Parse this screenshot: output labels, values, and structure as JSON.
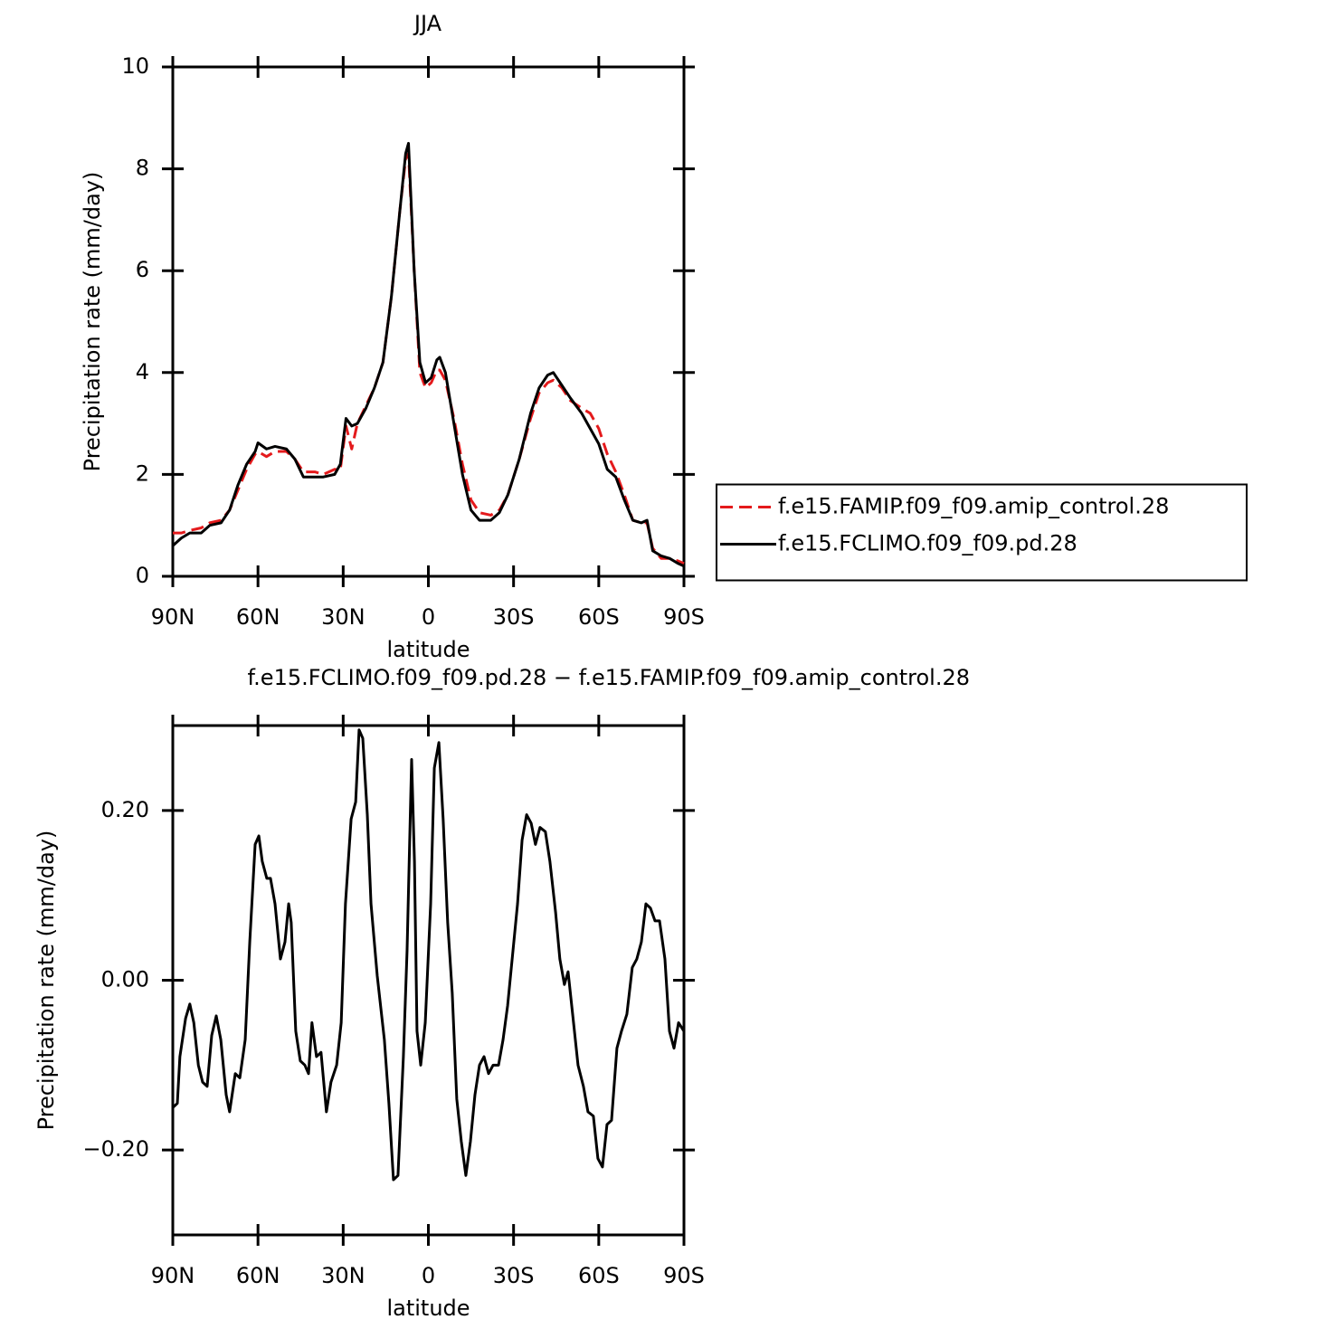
{
  "chart_data": [
    {
      "type": "line",
      "title": "JJA",
      "xlabel": "latitude",
      "ylabel": "Precipitation rate (mm/day)",
      "x": [
        90,
        87,
        84,
        80,
        77,
        73,
        70,
        67,
        64,
        61,
        60,
        57,
        54,
        50,
        47,
        44,
        40,
        37,
        33,
        31,
        29,
        27,
        25,
        22,
        19,
        16,
        13,
        10,
        8,
        7,
        5,
        3,
        1,
        -1,
        -3,
        -4,
        -6,
        -9,
        -12,
        -15,
        -18,
        -22,
        -25,
        -28,
        -32,
        -36,
        -39,
        -42,
        -44,
        -47,
        -50,
        -54,
        -57,
        -60,
        -63,
        -66,
        -69,
        -72,
        -75,
        -77,
        -79,
        -82,
        -85,
        -88,
        -90
      ],
      "series": [
        {
          "name": "f.e15.FAMIP.f09_f09.amip_control.28",
          "color": "#e41a1c",
          "dash": "dashed",
          "values": [
            0.85,
            0.85,
            0.9,
            0.95,
            1.05,
            1.1,
            1.3,
            1.7,
            2.1,
            2.4,
            2.45,
            2.35,
            2.45,
            2.45,
            2.3,
            2.05,
            2.05,
            2.0,
            2.1,
            2.1,
            2.95,
            2.5,
            3.0,
            3.35,
            3.7,
            4.2,
            5.5,
            7.2,
            8.2,
            8.3,
            6.0,
            4.0,
            3.7,
            3.8,
            4.05,
            4.05,
            3.85,
            3.1,
            2.2,
            1.5,
            1.25,
            1.2,
            1.3,
            1.6,
            2.3,
            3.1,
            3.6,
            3.8,
            3.85,
            3.7,
            3.45,
            3.3,
            3.2,
            2.9,
            2.4,
            2.05,
            1.6,
            1.1,
            1.05,
            1.05,
            0.55,
            0.35,
            0.35,
            0.3,
            0.25
          ]
        },
        {
          "name": "f.e15.FCLIMO.f09_f09.pd.28",
          "color": "#000000",
          "dash": "solid",
          "values": [
            0.6,
            0.75,
            0.85,
            0.85,
            1.0,
            1.05,
            1.3,
            1.8,
            2.2,
            2.45,
            2.62,
            2.5,
            2.55,
            2.5,
            2.3,
            1.95,
            1.95,
            1.95,
            2.0,
            2.2,
            3.1,
            2.95,
            3.0,
            3.3,
            3.7,
            4.2,
            5.5,
            7.2,
            8.3,
            8.5,
            6.0,
            4.2,
            3.8,
            3.9,
            4.25,
            4.3,
            4.0,
            3.0,
            2.0,
            1.3,
            1.1,
            1.1,
            1.25,
            1.6,
            2.3,
            3.2,
            3.7,
            3.95,
            4.0,
            3.75,
            3.5,
            3.2,
            2.9,
            2.6,
            2.1,
            1.95,
            1.5,
            1.1,
            1.05,
            1.1,
            0.5,
            0.4,
            0.35,
            0.25,
            0.2
          ]
        }
      ],
      "xlim": [
        90,
        -90
      ],
      "xticks": [
        {
          "value": 90,
          "label": "90N"
        },
        {
          "value": 60,
          "label": "60N"
        },
        {
          "value": 30,
          "label": "30N"
        },
        0,
        {
          "value": -30,
          "label": "30S"
        },
        {
          "value": -60,
          "label": "60S"
        },
        {
          "value": -90,
          "label": "90S"
        }
      ],
      "ylim": [
        0,
        10
      ],
      "yticks": [
        0,
        2,
        4,
        6,
        8,
        10
      ],
      "legend": "right"
    },
    {
      "type": "line",
      "title": "f.e15.FCLIMO.f09_f09.pd.28 − f.e15.FAMIP.f09_f09.amip_control.28",
      "xlabel": "latitude",
      "ylabel": "Precipitation rate (mm/day)",
      "x": [
        90,
        88.4,
        87.5,
        85.5,
        84,
        82.6,
        81,
        79.5,
        77.9,
        76.3,
        74.7,
        73.1,
        71.2,
        70,
        68,
        66.4,
        64.5,
        62.9,
        61,
        59.7,
        58.5,
        56.9,
        55.6,
        54,
        52.1,
        50.5,
        49.2,
        48.3,
        46.7,
        45.1,
        43.5,
        42.2,
        41,
        39.4,
        37.8,
        35.9,
        34.3,
        32.3,
        30.7,
        29.2,
        27.2,
        25.6,
        24.4,
        23.1,
        21.5,
        20.2,
        18,
        15.5,
        13.9,
        12.3,
        10.7,
        8.8,
        7.5,
        5.9,
        4.9,
        4,
        2.7,
        1.1,
        -0.8,
        -2.1,
        -3.7,
        -5.2,
        -6.8,
        -8.4,
        -10,
        -11.6,
        -13.2,
        -14.8,
        -16.4,
        -18,
        -19.6,
        -21.2,
        -22.8,
        -24.7,
        -26.3,
        -27.9,
        -29.8,
        -31.4,
        -33,
        -34.6,
        -36.2,
        -37.7,
        -39.3,
        -41.2,
        -42.8,
        -44.8,
        -46.3,
        -47.9,
        -49.2,
        -50.8,
        -52.7,
        -54.6,
        -56.2,
        -58.1,
        -59.7,
        -61.3,
        -62.9,
        -64.5,
        -66.4,
        -68,
        -69.9,
        -71.8,
        -73.4,
        -75,
        -76.6,
        -78.2,
        -79.8,
        -81.4,
        -83.3,
        -84.9,
        -86.5,
        -88.1,
        -90
      ],
      "values": [
        -0.15,
        -0.145,
        -0.09,
        -0.045,
        -0.028,
        -0.05,
        -0.1,
        -0.12,
        -0.125,
        -0.065,
        -0.042,
        -0.07,
        -0.135,
        -0.155,
        -0.11,
        -0.115,
        -0.07,
        0.045,
        0.16,
        0.17,
        0.14,
        0.12,
        0.12,
        0.09,
        0.025,
        0.045,
        0.09,
        0.068,
        -0.06,
        -0.095,
        -0.1,
        -0.11,
        -0.05,
        -0.09,
        -0.085,
        -0.155,
        -0.12,
        -0.1,
        -0.05,
        0.09,
        0.19,
        0.21,
        0.295,
        0.285,
        0.195,
        0.09,
        0.005,
        -0.07,
        -0.145,
        -0.235,
        -0.23,
        -0.09,
        0.035,
        0.26,
        0.14,
        -0.06,
        -0.1,
        -0.05,
        0.09,
        0.25,
        0.28,
        0.19,
        0.068,
        -0.015,
        -0.14,
        -0.19,
        -0.23,
        -0.19,
        -0.135,
        -0.1,
        -0.09,
        -0.11,
        -0.1,
        -0.1,
        -0.07,
        -0.03,
        0.035,
        0.09,
        0.165,
        0.195,
        0.185,
        0.16,
        0.18,
        0.175,
        0.14,
        0.08,
        0.025,
        -0.005,
        0.01,
        -0.04,
        -0.1,
        -0.125,
        -0.155,
        -0.16,
        -0.21,
        -0.22,
        -0.17,
        -0.165,
        -0.08,
        -0.06,
        -0.04,
        0.015,
        0.025,
        0.045,
        0.09,
        0.085,
        0.07,
        0.07,
        0.025,
        -0.06,
        -0.08,
        -0.05,
        -0.06
      ],
      "color": "#000000",
      "xlim": [
        90,
        -90
      ],
      "xticks": [
        {
          "value": 90,
          "label": "90N"
        },
        {
          "value": 60,
          "label": "60N"
        },
        {
          "value": 30,
          "label": "30N"
        },
        0,
        {
          "value": -30,
          "label": "30S"
        },
        {
          "value": -60,
          "label": "60S"
        },
        {
          "value": -90,
          "label": "90S"
        }
      ],
      "ylim": [
        -0.3,
        0.3
      ],
      "yticks": [
        {
          "value": -0.2,
          "label": "−0.20"
        },
        {
          "value": 0,
          "label": "0.00"
        },
        {
          "value": 0.2,
          "label": "0.20"
        }
      ]
    }
  ]
}
